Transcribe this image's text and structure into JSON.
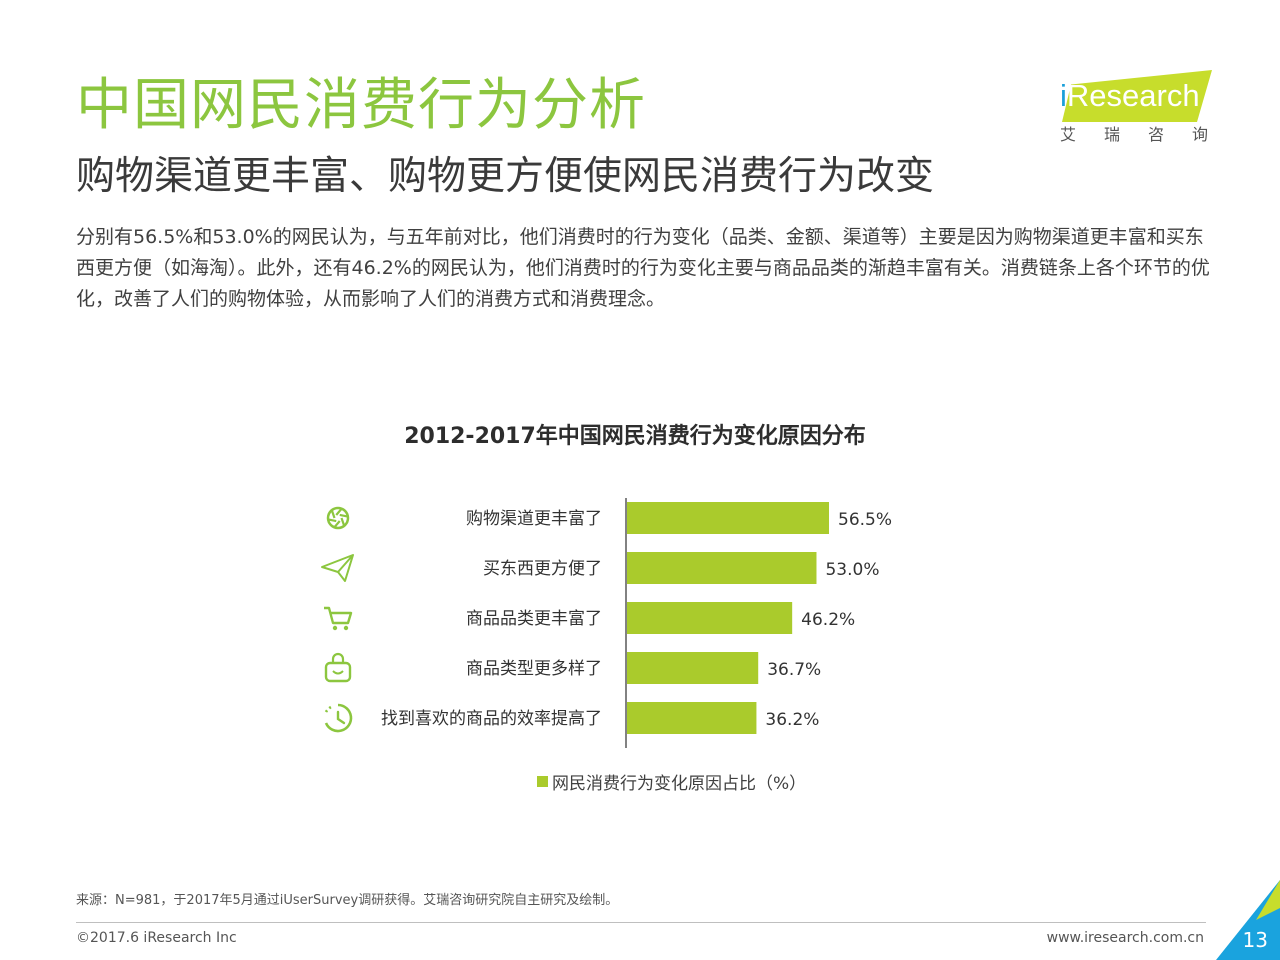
{
  "header": {
    "title": "中国网民消费行为分析",
    "subtitle": "购物渠道更丰富、购物更方便使网民消费行为改变",
    "body": "分别有56.5%和53.0%的网民认为，与五年前对比，他们消费时的行为变化（品类、金额、渠道等）主要是因为购物渠道更丰富和买东西更方便（如海淘）。此外，还有46.2%的网民认为，他们消费时的行为变化主要与商品品类的渐趋丰富有关。消费链条上各个环节的优化，改善了人们的购物体验，从而影响了人们的消费方式和消费理念。"
  },
  "logo": {
    "brand": "Research",
    "brand_prefix": "i",
    "sub": "艾瑞咨询"
  },
  "chart_data": {
    "type": "bar",
    "orientation": "horizontal",
    "title": "2012-2017年中国网民消费行为变化原因分布",
    "categories": [
      "购物渠道更丰富了",
      "买东西更方便了",
      "商品品类更丰富了",
      "商品类型更多样了",
      "找到喜欢的商品的效率提高了"
    ],
    "icons": [
      "aperture-icon",
      "paper-plane-icon",
      "cart-icon",
      "shopping-bag-icon",
      "clock-icon"
    ],
    "series": [
      {
        "name": "网民消费行为变化原因占比（%）",
        "values": [
          56.5,
          53.0,
          46.2,
          36.7,
          36.2
        ]
      }
    ],
    "value_labels": [
      "56.5%",
      "53.0%",
      "46.2%",
      "36.7%",
      "36.2%"
    ],
    "color": "#aacb2c",
    "legend": "bottom",
    "grid": false
  },
  "footer": {
    "source": "来源：N=981，于2017年5月通过iUserSurvey调研获得。艾瑞咨询研究院自主研究及绘制。",
    "copyright": "©2017.6 iResearch Inc",
    "website": "www.iresearch.com.cn",
    "page": "13"
  },
  "colors": {
    "accent": "#8cc63f",
    "bar": "#aacb2c",
    "corner_blue": "#1aa3de",
    "corner_lime": "#c7dd2c"
  }
}
